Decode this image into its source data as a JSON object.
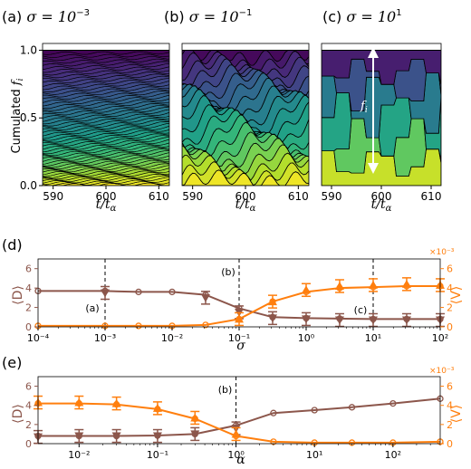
{
  "colors": {
    "brown": "#8c564b",
    "orange": "#ff7f0e",
    "viridis_dark": "#440154",
    "viridis_light": "#bddf26"
  },
  "chart_data": [
    {
      "type": "area",
      "panel": "(a)",
      "title": "(a) σ = 10⁻³",
      "title_prefix": "(a) ",
      "title_sigma": "σ = 10",
      "title_exp": "−3",
      "xlabel": "t/tα",
      "ylabel": "Cumulated f_i",
      "xlim": [
        588,
        612
      ],
      "ylim": [
        0,
        1.05
      ],
      "x_ticks": [
        "590",
        "600",
        "610"
      ],
      "y_ticks": [
        "0.0",
        "0.5",
        "1.0"
      ],
      "stack_count": 60,
      "colormap": "viridis"
    },
    {
      "type": "area",
      "panel": "(b)",
      "title": "(b) σ = 10⁻¹",
      "title_prefix": "(b) ",
      "title_sigma": "σ = 10",
      "title_exp": "−1",
      "xlabel": "t/tα",
      "xlim": [
        588,
        612
      ],
      "ylim": [
        0,
        1.05
      ],
      "x_ticks": [
        "590",
        "600",
        "610"
      ],
      "stack_count": 22,
      "colormap": "viridis"
    },
    {
      "type": "area",
      "panel": "(c)",
      "title": "(c) σ = 10¹",
      "title_prefix": "(c) ",
      "title_sigma": "σ = 10",
      "title_exp": "1",
      "xlabel": "t/tα",
      "xlim": [
        588,
        612
      ],
      "ylim": [
        0,
        1.05
      ],
      "x_ticks": [
        "590",
        "600",
        "610"
      ],
      "stack_count": 6,
      "colormap": "viridis",
      "annotation": "f_i"
    },
    {
      "type": "line",
      "panel": "(d)",
      "xlabel": "σ",
      "ylabel_left": "⟨D⟩",
      "ylabel_right": "⟨V⟩",
      "right_multiplier": "×10⁻³",
      "xscale": "log",
      "xlim": [
        0.0001,
        100
      ],
      "ylim_left": [
        0,
        7
      ],
      "ylim_right": [
        0,
        7
      ],
      "x_ticks": [
        "10⁻⁴",
        "10⁻³",
        "10⁻²",
        "10⁻¹",
        "10⁰",
        "10¹",
        "10²"
      ],
      "y_ticks_left": [
        "0",
        "2",
        "4",
        "6"
      ],
      "y_ticks_right": [
        "0",
        "2",
        "4",
        "6"
      ],
      "vlines": [
        0.001,
        0.1,
        10
      ],
      "vline_labels": [
        "(a)",
        "(b)",
        "(c)"
      ],
      "series": [
        {
          "axis": "left",
          "x": [
            0.0001,
            0.001,
            0.00316,
            0.01,
            0.0316,
            0.1,
            0.316,
            1,
            3.16,
            10,
            31.6,
            100
          ],
          "circle_y": [
            3.7,
            3.7,
            3.6,
            3.6,
            3.3,
            1.9,
            1.0,
            0.9,
            0.85,
            0.8,
            0.8,
            0.8
          ],
          "triangle_y": [
            null,
            3.5,
            null,
            null,
            3.0,
            1.5,
            0.9,
            0.8,
            0.7,
            0.7,
            0.7,
            0.7
          ]
        },
        {
          "axis": "right",
          "x": [
            0.0001,
            0.001,
            0.00316,
            0.01,
            0.0316,
            0.1,
            0.316,
            1,
            3.16,
            10,
            31.6,
            100
          ],
          "circle_y": [
            0.1,
            0.1,
            0.1,
            0.1,
            0.2,
            0.8,
            2.6,
            3.6,
            4.0,
            4.1,
            4.2,
            4.2
          ],
          "triangle_y": [
            null,
            null,
            null,
            null,
            null,
            0.8,
            2.6,
            3.8,
            4.2,
            4.3,
            4.4,
            4.3
          ]
        }
      ]
    },
    {
      "type": "line",
      "panel": "(e)",
      "xlabel": "α",
      "ylabel_left": "⟨D⟩",
      "ylabel_right": "⟨V⟩",
      "right_multiplier": "×10⁻³",
      "xscale": "log",
      "xlim": [
        0.003,
        400
      ],
      "ylim_left": [
        0,
        7
      ],
      "ylim_right": [
        0,
        7
      ],
      "x_ticks": [
        "10⁻²",
        "10⁻¹",
        "10⁰",
        "10¹",
        "10²"
      ],
      "y_ticks_left": [
        "0",
        "2",
        "4",
        "6"
      ],
      "y_ticks_right": [
        "0",
        "2",
        "4",
        "6"
      ],
      "vlines": [
        1
      ],
      "vline_labels": [
        "(b)"
      ],
      "series": [
        {
          "axis": "left",
          "x": [
            0.003,
            0.01,
            0.03,
            0.1,
            0.3,
            1,
            3,
            10,
            30,
            100,
            400
          ],
          "circle_y": [
            0.8,
            0.8,
            0.8,
            0.85,
            1.0,
            1.9,
            3.2,
            3.5,
            3.8,
            4.2,
            4.7
          ],
          "triangle_y": [
            0.7,
            0.8,
            0.8,
            0.8,
            1.0,
            1.6,
            null,
            null,
            null,
            null,
            null
          ]
        },
        {
          "axis": "right",
          "x": [
            0.003,
            0.01,
            0.03,
            0.1,
            0.3,
            1,
            3,
            10,
            30,
            100,
            400
          ],
          "circle_y": [
            4.2,
            4.2,
            4.1,
            3.6,
            2.6,
            0.8,
            0.2,
            0.1,
            0.1,
            0.1,
            0.2
          ],
          "triangle_y": [
            4.3,
            4.3,
            4.2,
            3.7,
            2.7,
            1.0,
            null,
            null,
            null,
            null,
            null
          ]
        }
      ]
    }
  ]
}
